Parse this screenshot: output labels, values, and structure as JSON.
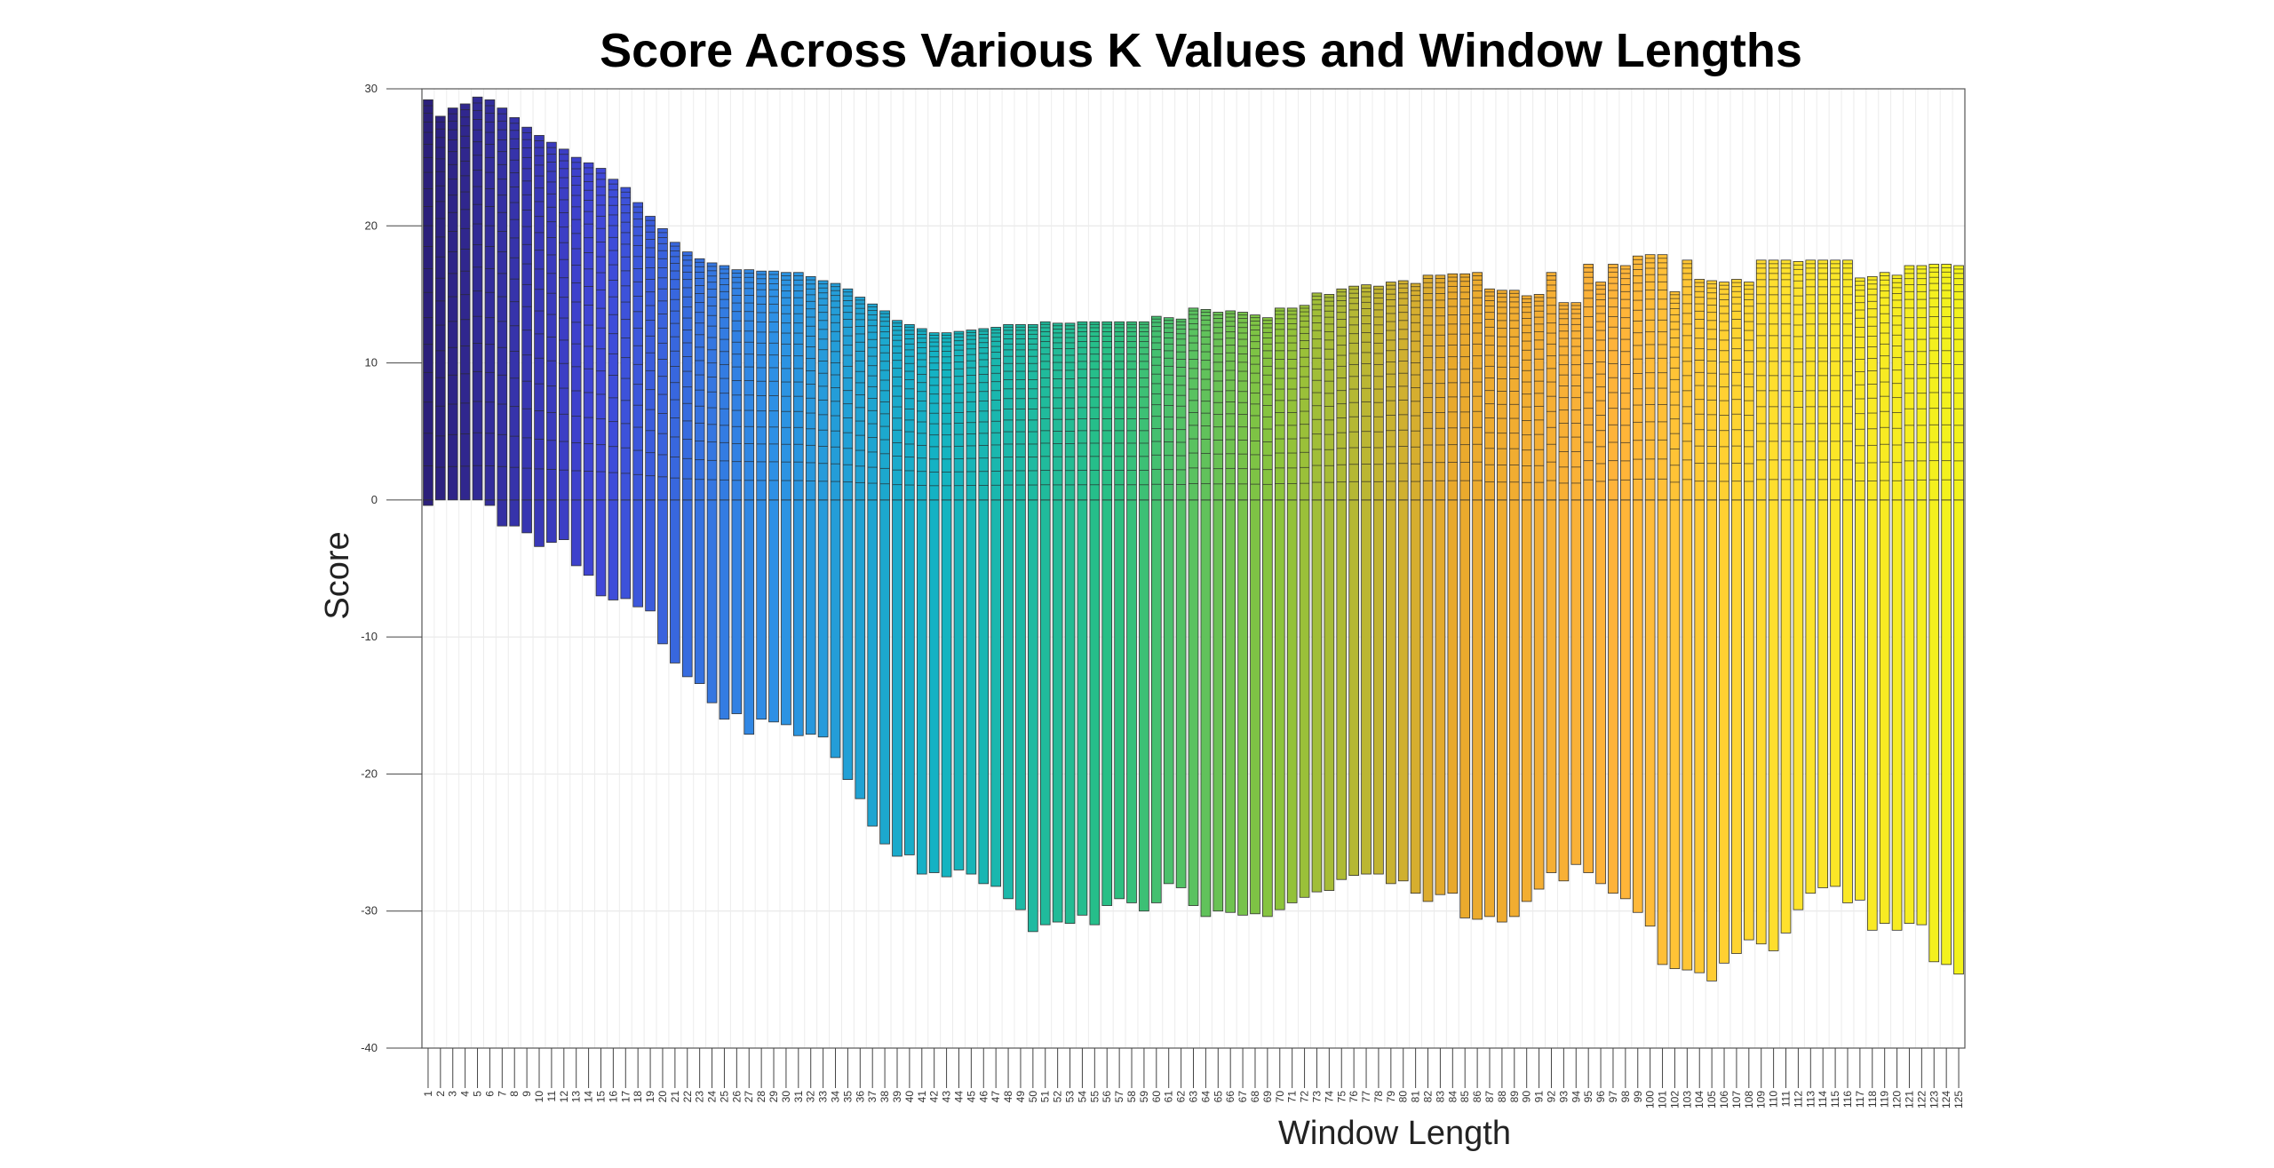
{
  "chart_data": {
    "type": "bar",
    "title": "Score Across Various K Values and Window Lengths",
    "xlabel": "Window Length",
    "ylabel": "Score",
    "ylim": [
      -40,
      30
    ],
    "yticks": [
      30,
      20,
      10,
      0,
      -10,
      -20,
      -30,
      -40
    ],
    "grid": true,
    "colormap": [
      "#2b1f7a",
      "#4046d8",
      "#2f8fe6",
      "#13b3c3",
      "#28bf85",
      "#8cc43b",
      "#e8a92c",
      "#ffb33a",
      "#ffe22d",
      "#f2f21c"
    ],
    "categories": [
      1,
      2,
      3,
      4,
      5,
      6,
      7,
      8,
      9,
      10,
      11,
      12,
      13,
      14,
      15,
      16,
      17,
      18,
      19,
      20,
      21,
      22,
      23,
      24,
      25,
      26,
      27,
      28,
      29,
      30,
      31,
      32,
      33,
      34,
      35,
      36,
      37,
      38,
      39,
      40,
      41,
      42,
      43,
      44,
      45,
      46,
      47,
      48,
      49,
      50,
      51,
      52,
      53,
      54,
      55,
      56,
      57,
      58,
      59,
      60,
      61,
      62,
      63,
      64,
      65,
      66,
      67,
      68,
      69,
      70,
      71,
      72,
      73,
      74,
      75,
      76,
      77,
      78,
      79,
      80,
      81,
      82,
      83,
      84,
      85,
      86,
      87,
      88,
      89,
      90,
      91,
      92,
      93,
      94,
      95,
      96,
      97,
      98,
      99,
      100,
      101,
      102,
      103,
      104,
      105,
      106,
      107,
      108,
      109,
      110,
      111,
      112,
      113,
      114,
      115,
      116,
      117,
      118,
      119,
      120,
      121,
      122,
      123,
      124,
      125
    ],
    "max_values": [
      29.2,
      28.0,
      28.6,
      28.9,
      29.4,
      29.2,
      28.6,
      27.9,
      27.2,
      26.6,
      26.1,
      25.6,
      25.0,
      24.6,
      24.2,
      23.4,
      22.8,
      21.7,
      20.7,
      19.8,
      18.8,
      18.1,
      17.6,
      17.3,
      17.1,
      16.8,
      16.8,
      16.7,
      16.7,
      16.6,
      16.6,
      16.3,
      16.0,
      15.8,
      15.4,
      14.8,
      14.3,
      13.8,
      13.1,
      12.8,
      12.5,
      12.2,
      12.2,
      12.3,
      12.4,
      12.5,
      12.6,
      12.8,
      12.8,
      12.8,
      13.0,
      12.9,
      12.9,
      13.0,
      13.0,
      13.0,
      13.0,
      13.0,
      13.0,
      13.4,
      13.3,
      13.2,
      14.0,
      13.9,
      13.7,
      13.8,
      13.7,
      13.5,
      13.3,
      14.0,
      14.0,
      14.2,
      15.1,
      15.0,
      15.4,
      15.6,
      15.7,
      15.6,
      15.9,
      16.0,
      15.8,
      16.4,
      16.4,
      16.5,
      16.5,
      16.6,
      15.4,
      15.3,
      15.3,
      14.9,
      15.0,
      16.6,
      14.4,
      14.4,
      17.2,
      15.9,
      17.2,
      17.1,
      17.8,
      17.9,
      17.9,
      15.2,
      17.5,
      16.1,
      16.0,
      15.9,
      16.1,
      15.9,
      17.5,
      17.5,
      17.5,
      17.4,
      17.5,
      17.5,
      17.5,
      17.5,
      16.2,
      16.3,
      16.6,
      16.4,
      17.1,
      17.1,
      17.2,
      17.2,
      17.1
    ],
    "min_values": [
      -0.4,
      0,
      0,
      0,
      0,
      -0.4,
      -1.9,
      -1.9,
      -2.4,
      -3.4,
      -3.1,
      -2.9,
      -4.8,
      -5.5,
      -7.0,
      -7.3,
      -7.2,
      -7.8,
      -8.1,
      -10.5,
      -11.9,
      -12.9,
      -13.4,
      -14.8,
      -16.0,
      -15.6,
      -17.1,
      -16.0,
      -16.2,
      -16.4,
      -17.2,
      -17.1,
      -17.3,
      -18.8,
      -20.4,
      -21.8,
      -23.8,
      -25.1,
      -26.0,
      -25.9,
      -27.3,
      -27.2,
      -27.5,
      -27.0,
      -27.3,
      -28.0,
      -28.2,
      -29.1,
      -29.9,
      -31.5,
      -31.0,
      -30.8,
      -30.9,
      -30.3,
      -31.0,
      -29.6,
      -29.1,
      -29.4,
      -30.0,
      -29.4,
      -28.0,
      -28.3,
      -29.6,
      -30.4,
      -30.0,
      -30.1,
      -30.3,
      -30.2,
      -30.4,
      -29.9,
      -29.4,
      -29.0,
      -28.6,
      -28.5,
      -27.7,
      -27.4,
      -27.3,
      -27.3,
      -28.0,
      -27.8,
      -28.7,
      -29.3,
      -28.8,
      -28.7,
      -30.5,
      -30.6,
      -30.4,
      -30.8,
      -30.4,
      -29.3,
      -28.4,
      -27.2,
      -27.8,
      -26.6,
      -27.2,
      -28.0,
      -28.7,
      -29.1,
      -30.1,
      -31.1,
      -33.9,
      -34.2,
      -34.3,
      -34.5,
      -35.1,
      -33.8,
      -33.1,
      -32.1,
      -32.4,
      -32.9,
      -31.6,
      -29.9,
      -28.7,
      -28.3,
      -28.2,
      -29.4,
      -29.2,
      -31.4,
      -30.9,
      -31.4,
      -30.9,
      -31.0,
      -33.7,
      -33.9,
      -34.6
    ],
    "k_series_count": 20
  }
}
